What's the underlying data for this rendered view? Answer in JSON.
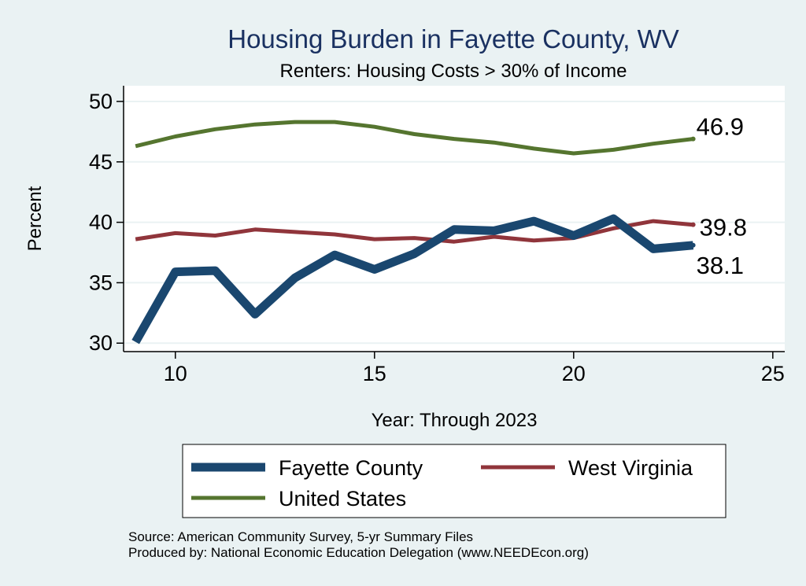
{
  "chart_data": {
    "type": "line",
    "title": "Housing Burden in Fayette County, WV",
    "subtitle": "Renters: Housing Costs > 30% of Income",
    "xlabel": "Year: Through 2023",
    "ylabel": "Percent",
    "xlim": [
      8.7,
      25.3
    ],
    "ylim": [
      29.3,
      51.3
    ],
    "xticks": [
      "10",
      "15",
      "20",
      "25"
    ],
    "yticks": [
      "30",
      "35",
      "40",
      "45",
      "50"
    ],
    "grid": true,
    "legend_position": "bottom",
    "x": [
      9,
      10,
      11,
      12,
      13,
      14,
      15,
      16,
      17,
      18,
      19,
      20,
      21,
      22,
      23
    ],
    "series": [
      {
        "name": "Fayette County",
        "color": "#1a476f",
        "values": [
          30.1,
          35.9,
          36.0,
          32.4,
          35.4,
          37.3,
          36.1,
          37.4,
          39.4,
          39.3,
          40.1,
          38.9,
          40.3,
          37.8,
          38.1
        ],
        "end_label": "38.1"
      },
      {
        "name": "West Virginia",
        "color": "#90353b",
        "values": [
          38.6,
          39.1,
          38.9,
          39.4,
          39.2,
          39.0,
          38.6,
          38.7,
          38.4,
          38.8,
          38.5,
          38.7,
          39.5,
          40.1,
          39.8
        ],
        "end_label": "39.8"
      },
      {
        "name": "United States",
        "color": "#55752f",
        "values": [
          46.3,
          47.1,
          47.7,
          48.1,
          48.3,
          48.3,
          47.9,
          47.3,
          46.9,
          46.6,
          46.1,
          45.7,
          46.0,
          46.5,
          46.9
        ],
        "end_label": "46.9"
      }
    ]
  },
  "notes": {
    "source": "Source: American Community Survey, 5-yr Summary Files",
    "produced_by": "Produced by: National Economic Education Delegation (www.NEEDEcon.org)"
  }
}
